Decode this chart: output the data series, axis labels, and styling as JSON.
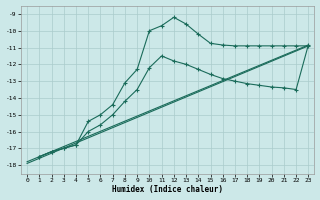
{
  "xlabel": "Humidex (Indice chaleur)",
  "background_color": "#cce8e8",
  "grid_color": "#aacccc",
  "line_color": "#1a6b5a",
  "xlim": [
    -0.5,
    23.5
  ],
  "ylim": [
    -18.5,
    -8.5
  ],
  "xticks": [
    0,
    1,
    2,
    3,
    4,
    5,
    6,
    7,
    8,
    9,
    10,
    11,
    12,
    13,
    14,
    15,
    16,
    17,
    18,
    19,
    20,
    21,
    22,
    23
  ],
  "yticks": [
    -18,
    -17,
    -16,
    -15,
    -14,
    -13,
    -12,
    -11,
    -10,
    -9
  ],
  "line1_x": [
    1,
    2,
    3,
    4,
    5,
    6,
    7,
    8,
    9,
    10,
    11,
    12,
    13,
    14,
    15,
    16,
    17,
    18,
    19,
    20,
    21,
    22,
    23
  ],
  "line1_y": [
    -17.5,
    -17.2,
    -17.0,
    -16.8,
    -15.4,
    -15.0,
    -14.4,
    -13.1,
    -12.3,
    -10.0,
    -9.7,
    -9.2,
    -9.6,
    -10.2,
    -10.75,
    -10.85,
    -10.9,
    -10.9,
    -10.9,
    -10.9,
    -10.9,
    -10.9,
    -10.9
  ],
  "line2_x": [
    1,
    2,
    3,
    4,
    5,
    6,
    7,
    8,
    9,
    10,
    11,
    12,
    13,
    14,
    15,
    16,
    17,
    18,
    19,
    20,
    21,
    22,
    23
  ],
  "line2_y": [
    -17.5,
    -17.2,
    -17.0,
    -16.8,
    -16.0,
    -15.6,
    -15.0,
    -14.2,
    -13.5,
    -12.2,
    -11.5,
    -11.8,
    -12.0,
    -12.3,
    -12.6,
    -12.85,
    -13.0,
    -13.15,
    -13.25,
    -13.35,
    -13.4,
    -13.5,
    -10.85
  ],
  "line3_x": [
    0,
    23
  ],
  "line3_y": [
    -17.8,
    -10.85
  ],
  "line4_x": [
    0,
    23
  ],
  "line4_y": [
    -17.9,
    -10.9
  ]
}
